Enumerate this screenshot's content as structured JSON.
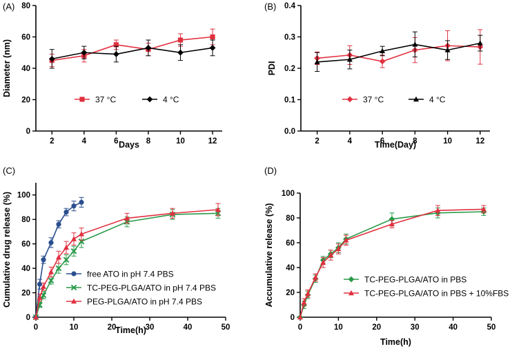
{
  "colors": {
    "red": "#e0303f",
    "black": "#000000",
    "blue": "#2a4f8f",
    "green": "#2a9a4a"
  },
  "chart_data": [
    {
      "panel": "(A)",
      "type": "line",
      "xlabel": "Days",
      "ylabel": "Diameter (nm)",
      "xlim": [
        1,
        12.6
      ],
      "ylim": [
        0,
        80
      ],
      "xticks": [
        2,
        4,
        6,
        8,
        10,
        12
      ],
      "yticks": [
        0,
        20,
        40,
        60,
        80
      ],
      "legend_position": "bottom-center",
      "series": [
        {
          "name": "37 °C",
          "color": "#e0303f",
          "marker": "square",
          "x": [
            2,
            4,
            6,
            8,
            10,
            12
          ],
          "y": [
            45,
            48,
            55,
            52,
            58,
            60
          ],
          "err": [
            4,
            4,
            3,
            4,
            4,
            5
          ]
        },
        {
          "name": "4 °C",
          "color": "#000000",
          "marker": "diamond",
          "x": [
            2,
            4,
            6,
            8,
            10,
            12
          ],
          "y": [
            46,
            50,
            49,
            53,
            50,
            53
          ],
          "err": [
            6,
            4,
            5,
            5,
            5,
            5
          ]
        }
      ]
    },
    {
      "panel": "(B)",
      "type": "line",
      "xlabel": "Time(Day)",
      "ylabel": "PDI",
      "xlim": [
        1,
        12.6
      ],
      "ylim": [
        0,
        0.4
      ],
      "xticks": [
        2,
        4,
        6,
        8,
        10,
        12
      ],
      "yticks": [
        0.0,
        0.1,
        0.2,
        0.3,
        0.4
      ],
      "ytick_labels": [
        "0.0",
        "0.1",
        "0.2",
        "0.3",
        "0.4"
      ],
      "legend_position": "bottom-center",
      "series": [
        {
          "name": "37 °C",
          "color": "#e0303f",
          "marker": "diamond",
          "x": [
            2,
            4,
            6,
            8,
            10,
            12
          ],
          "y": [
            0.232,
            0.242,
            0.222,
            0.258,
            0.272,
            0.268
          ],
          "err": [
            0.02,
            0.03,
            0.02,
            0.04,
            0.048,
            0.055
          ]
        },
        {
          "name": "4 °C",
          "color": "#000000",
          "marker": "triangle",
          "x": [
            2,
            4,
            6,
            8,
            10,
            12
          ],
          "y": [
            0.22,
            0.228,
            0.255,
            0.276,
            0.258,
            0.28
          ],
          "err": [
            0.03,
            0.03,
            0.015,
            0.04,
            0.03,
            0.025
          ]
        }
      ]
    },
    {
      "panel": "(C)",
      "type": "line",
      "xlabel": "Time(h)",
      "ylabel": "Cumulative drug release (%)",
      "xlim": [
        0,
        50
      ],
      "ylim": [
        0,
        110
      ],
      "xticks": [
        0,
        10,
        20,
        30,
        40,
        50
      ],
      "yticks": [
        0,
        20,
        40,
        60,
        80,
        100
      ],
      "legend_position": "center",
      "series": [
        {
          "name": "free ATO in pH 7.4 PBS",
          "color": "#2a4f8f",
          "marker": "circle",
          "x": [
            0,
            1,
            2,
            4,
            6,
            8,
            10,
            12
          ],
          "y": [
            0,
            27,
            47,
            61,
            76,
            86,
            91,
            94
          ],
          "err": [
            0,
            4,
            3,
            4,
            3,
            3,
            4,
            4
          ]
        },
        {
          "name": "TC-PEG-PLGA/ATO in pH 7.4 PBS",
          "color": "#2a9a4a",
          "marker": "x",
          "x": [
            0,
            1,
            2,
            4,
            6,
            8,
            10,
            12,
            24,
            36,
            48
          ],
          "y": [
            0,
            10,
            18,
            30,
            40,
            47,
            54,
            62,
            78,
            84,
            85
          ],
          "err": [
            0,
            2,
            3,
            3,
            4,
            4,
            4,
            5,
            4,
            4,
            4
          ]
        },
        {
          "name": "PEG-PLGA/ATO in pH 7.4 PBS",
          "color": "#e0303f",
          "marker": "triangle",
          "x": [
            0,
            1,
            2,
            4,
            6,
            8,
            10,
            12,
            24,
            36,
            48
          ],
          "y": [
            0,
            16,
            25,
            37,
            49,
            57,
            64,
            68,
            81,
            85,
            88
          ],
          "err": [
            0,
            3,
            3,
            4,
            5,
            5,
            5,
            5,
            4,
            4,
            5
          ]
        }
      ]
    },
    {
      "panel": "(D)",
      "type": "line",
      "xlabel": "Time(h)",
      "ylabel": "Accumulative release (%)",
      "xlim": [
        0,
        50
      ],
      "ylim": [
        0,
        100
      ],
      "xticks": [
        0,
        10,
        20,
        30,
        40,
        50
      ],
      "yticks": [
        0,
        20,
        40,
        60,
        80,
        100
      ],
      "legend_position": "center-right",
      "series": [
        {
          "name": "TC-PEG-PLGA/ATO in PBS",
          "color": "#2a9a4a",
          "marker": "diamond",
          "x": [
            0,
            1,
            2,
            4,
            6,
            8,
            10,
            12,
            24,
            36,
            48
          ],
          "y": [
            0,
            10,
            18,
            31,
            46,
            51,
            56,
            63,
            79,
            84,
            85
          ],
          "err": [
            0,
            3,
            3,
            3,
            3,
            3,
            4,
            4,
            5,
            4,
            3
          ]
        },
        {
          "name": "TC-PEG-PLGA/ATO in PBS + 10%FBS",
          "color": "#e0303f",
          "marker": "triangle",
          "x": [
            0,
            1,
            2,
            4,
            6,
            8,
            10,
            12,
            24,
            36,
            48
          ],
          "y": [
            0,
            12,
            19,
            32,
            44,
            50,
            55,
            62,
            75,
            86,
            87
          ],
          "err": [
            0,
            3,
            3,
            3,
            4,
            4,
            4,
            4,
            3,
            4,
            3
          ]
        }
      ]
    }
  ]
}
